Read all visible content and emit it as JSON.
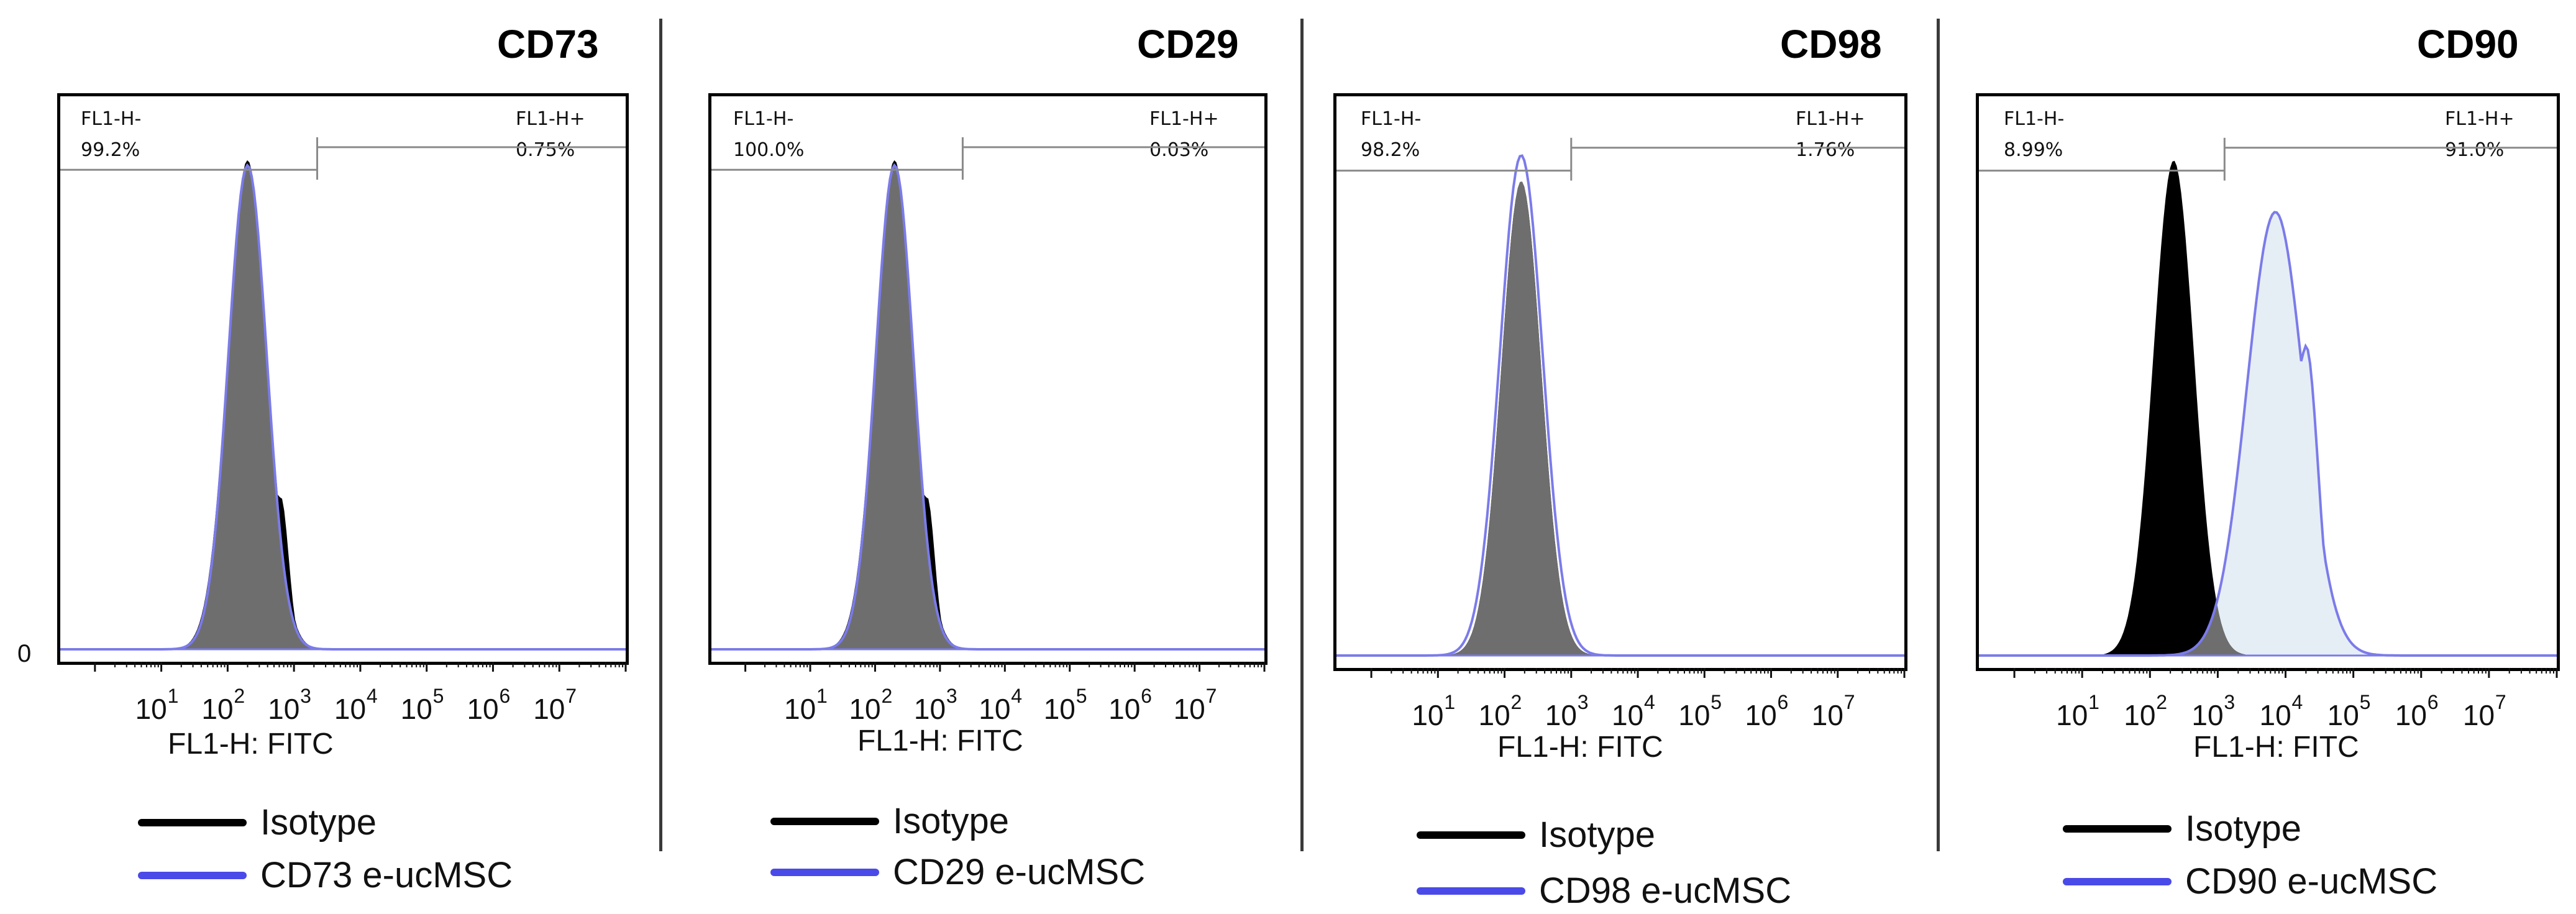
{
  "chart_data": [
    {
      "type": "histogram",
      "title": "CD73",
      "xlabel": "FL1-H: FITC",
      "ylabel": "",
      "y_zero_label": "0",
      "x_scale": "log10",
      "xlim": [
        0.3,
        100000000
      ],
      "tick_labels": [
        {
          "base": "10",
          "exp": "1"
        },
        {
          "base": "10",
          "exp": "2"
        },
        {
          "base": "10",
          "exp": "3"
        },
        {
          "base": "10",
          "exp": "4"
        },
        {
          "base": "10",
          "exp": "5"
        },
        {
          "base": "10",
          "exp": "6"
        },
        {
          "base": "10",
          "exp": "7"
        }
      ],
      "gates": {
        "negative": {
          "name": "FL1-H-",
          "percent": "99.2%"
        },
        "positive": {
          "name": "FL1-H+",
          "percent": "0.75%"
        },
        "threshold_log10": 3.35
      },
      "series": [
        {
          "name": "Isotype",
          "peak_log10": 2.3,
          "width": 0.3,
          "height": 0.96,
          "shoulder": {
            "pos_log10": 2.8,
            "height": 0.3,
            "width": 0.12
          }
        },
        {
          "name": "CD73 e-ucMSC",
          "peak_log10": 2.3,
          "width": 0.29,
          "height": 0.95
        }
      ],
      "legend": [
        {
          "label": "Isotype",
          "color": "#000000"
        },
        {
          "label": "CD73 e-ucMSC",
          "color": "#4a4ae8"
        }
      ]
    },
    {
      "type": "histogram",
      "title": "CD29",
      "xlabel": "FL1-H: FITC",
      "ylabel": "",
      "x_scale": "log10",
      "xlim": [
        0.3,
        100000000
      ],
      "tick_labels": [
        {
          "base": "10",
          "exp": "1"
        },
        {
          "base": "10",
          "exp": "2"
        },
        {
          "base": "10",
          "exp": "3"
        },
        {
          "base": "10",
          "exp": "4"
        },
        {
          "base": "10",
          "exp": "5"
        },
        {
          "base": "10",
          "exp": "6"
        },
        {
          "base": "10",
          "exp": "7"
        }
      ],
      "gates": {
        "negative": {
          "name": "FL1-H-",
          "percent": "100.0%"
        },
        "positive": {
          "name": "FL1-H+",
          "percent": "0.03%"
        },
        "threshold_log10": 3.35
      },
      "series": [
        {
          "name": "Isotype",
          "peak_log10": 2.3,
          "width": 0.3,
          "height": 0.96,
          "shoulder": {
            "pos_log10": 2.8,
            "height": 0.3,
            "width": 0.12
          }
        },
        {
          "name": "CD29 e-ucMSC",
          "peak_log10": 2.3,
          "width": 0.29,
          "height": 0.95
        }
      ],
      "legend": [
        {
          "label": "Isotype",
          "color": "#000000"
        },
        {
          "label": "CD29 e-ucMSC",
          "color": "#4a4ae8"
        }
      ]
    },
    {
      "type": "histogram",
      "title": "CD98",
      "xlabel": "FL1-H: FITC",
      "ylabel": "",
      "x_scale": "log10",
      "xlim": [
        0.3,
        100000000
      ],
      "tick_labels": [
        {
          "base": "10",
          "exp": "1"
        },
        {
          "base": "10",
          "exp": "2"
        },
        {
          "base": "10",
          "exp": "3"
        },
        {
          "base": "10",
          "exp": "4"
        },
        {
          "base": "10",
          "exp": "5"
        },
        {
          "base": "10",
          "exp": "6"
        },
        {
          "base": "10",
          "exp": "7"
        }
      ],
      "gates": {
        "negative": {
          "name": "FL1-H-",
          "percent": "98.2%"
        },
        "positive": {
          "name": "FL1-H+",
          "percent": "1.76%"
        },
        "threshold_log10": 3.0
      },
      "series": [
        {
          "name": "Isotype",
          "peak_log10": 2.25,
          "width": 0.3,
          "height": 0.92
        },
        {
          "name": "CD98 e-ucMSC",
          "peak_log10": 2.25,
          "width": 0.32,
          "height": 0.97,
          "shoulder": {
            "pos_log10": 2.75,
            "height": 0.2,
            "width": 0.12
          }
        }
      ],
      "legend": [
        {
          "label": "Isotype",
          "color": "#000000"
        },
        {
          "label": "CD98 e-ucMSC",
          "color": "#4a4ae8"
        }
      ]
    },
    {
      "type": "histogram",
      "title": "CD90",
      "xlabel": "FL1-H: FITC",
      "ylabel": "",
      "x_scale": "log10",
      "xlim": [
        0.3,
        100000000
      ],
      "tick_labels": [
        {
          "base": "10",
          "exp": "1"
        },
        {
          "base": "10",
          "exp": "2"
        },
        {
          "base": "10",
          "exp": "3"
        },
        {
          "base": "10",
          "exp": "4"
        },
        {
          "base": "10",
          "exp": "5"
        },
        {
          "base": "10",
          "exp": "6"
        },
        {
          "base": "10",
          "exp": "7"
        }
      ],
      "gates": {
        "negative": {
          "name": "FL1-H-",
          "percent": "8.99%"
        },
        "positive": {
          "name": "FL1-H+",
          "percent": "91.0%"
        },
        "threshold_log10": 3.1
      },
      "series": [
        {
          "name": "Isotype",
          "peak_log10": 2.35,
          "width": 0.3,
          "height": 0.96
        },
        {
          "name": "CD90 e-ucMSC",
          "peak_log10": 3.85,
          "width": 0.42,
          "height": 0.86,
          "shoulder": {
            "pos_log10": 4.3,
            "height": 0.6,
            "width": 0.18
          }
        }
      ],
      "legend": [
        {
          "label": "Isotype",
          "color": "#000000"
        },
        {
          "label": "CD90 e-ucMSC",
          "color": "#4a4ae8"
        }
      ]
    }
  ],
  "colors": {
    "isotype_fill": "#000000",
    "overlap_fill": "#6e6e6e",
    "sample_line": "#7b7bea",
    "sample_fill": "#e6eef5",
    "gate_line": "#8a8a8a",
    "legend_sample": "#4a4ae8"
  }
}
